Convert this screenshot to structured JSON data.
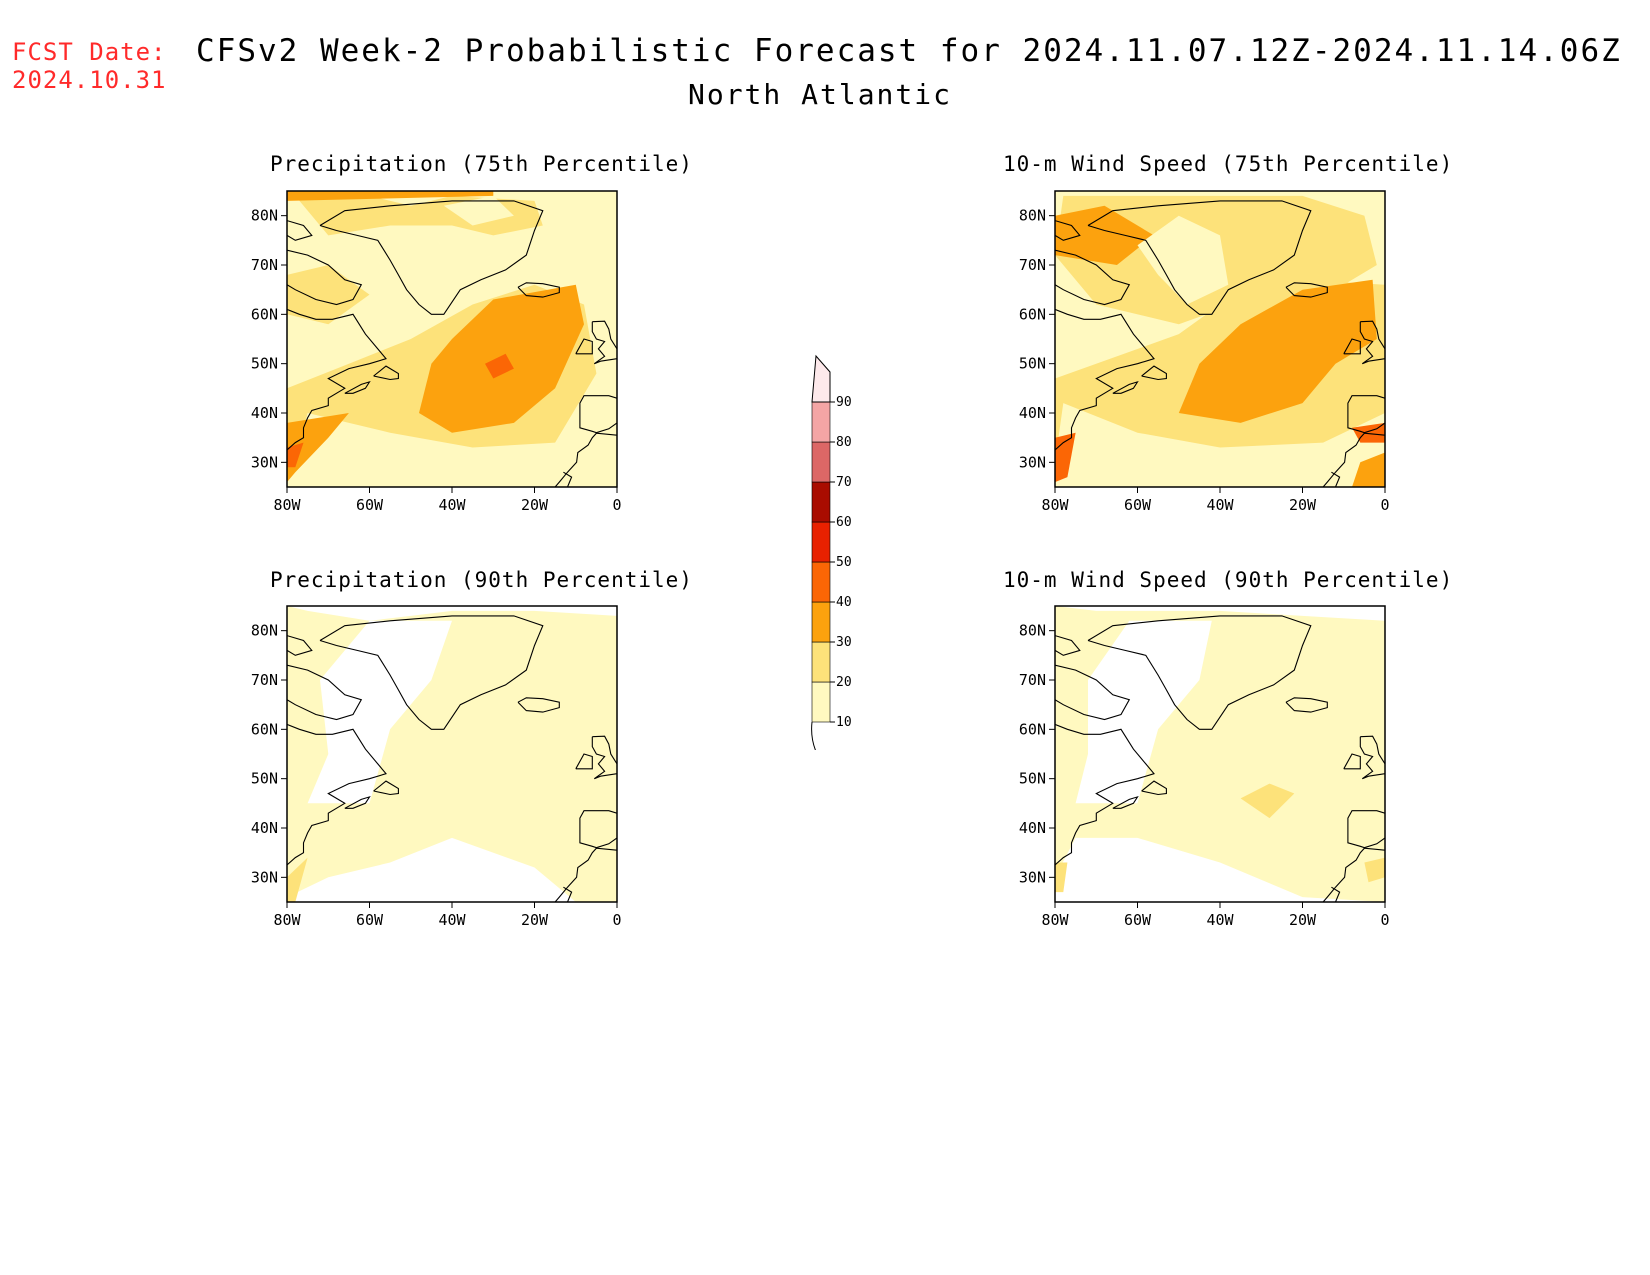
{
  "header": {
    "fcst_label": "FCST Date:",
    "fcst_date": "2024.10.31",
    "title": "CFSv2 Week-2 Probabilistic Forecast for 2024.11.07.12Z-2024.11.14.06Z",
    "subtitle": "North Atlantic"
  },
  "panels": [
    {
      "title": "Precipitation (75th Percentile)",
      "variant": "precip75"
    },
    {
      "title": "10-m Wind Speed (75th Percentile)",
      "variant": "wind75"
    },
    {
      "title": "Precipitation (90th Percentile)",
      "variant": "precip90"
    },
    {
      "title": "10-m Wind Speed (90th Percentile)",
      "variant": "wind90"
    }
  ],
  "axes": {
    "lat_labels": [
      "80N",
      "70N",
      "60N",
      "50N",
      "40N",
      "30N"
    ],
    "lon_labels": [
      "80W",
      "60W",
      "40W",
      "20W",
      "0"
    ],
    "lat_range": [
      25,
      85
    ],
    "lon_range": [
      -80,
      0
    ]
  },
  "colorbar": {
    "levels": [
      "10",
      "20",
      "30",
      "40",
      "50",
      "60",
      "70",
      "80",
      "90"
    ],
    "colors": [
      "#fff9c0",
      "#fde27a",
      "#fca20e",
      "#fb6605",
      "#e82100",
      "#a90c00",
      "#dc6766",
      "#f4a5a5",
      "#fde9eb"
    ]
  }
}
